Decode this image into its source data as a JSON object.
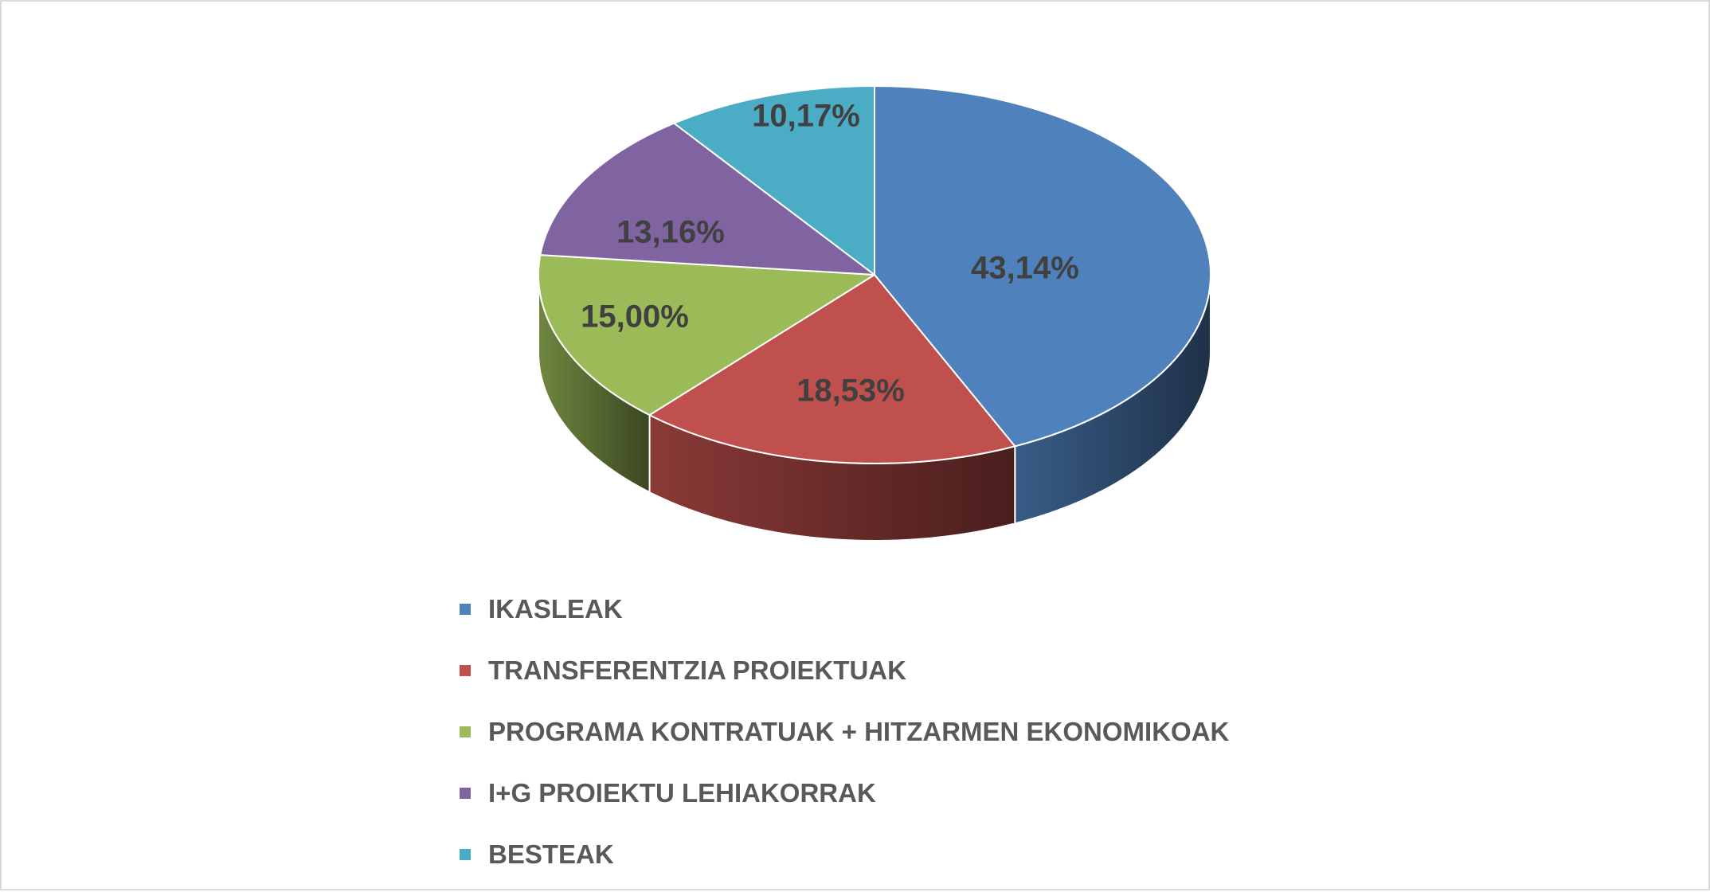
{
  "chart_data": {
    "type": "pie",
    "style": "3d",
    "title": "",
    "categories": [
      "IKASLEAK",
      "TRANSFERENTZIA PROIEKTUAK",
      "PROGRAMA KONTRATUAK + HITZARMEN EKONOMIKOAK",
      "I+G PROIEKTU LEHIAKORRAK",
      "BESTEAK"
    ],
    "values": [
      43.14,
      18.53,
      15.0,
      13.16,
      10.17
    ],
    "data_labels": [
      "43,14%",
      "18,53%",
      "15,00%",
      "13,16%",
      "10,17%"
    ],
    "colors": [
      "#4F81BD",
      "#C0504D",
      "#9BBB59",
      "#8064A2",
      "#4BACC6"
    ],
    "legend_position": "bottom"
  }
}
